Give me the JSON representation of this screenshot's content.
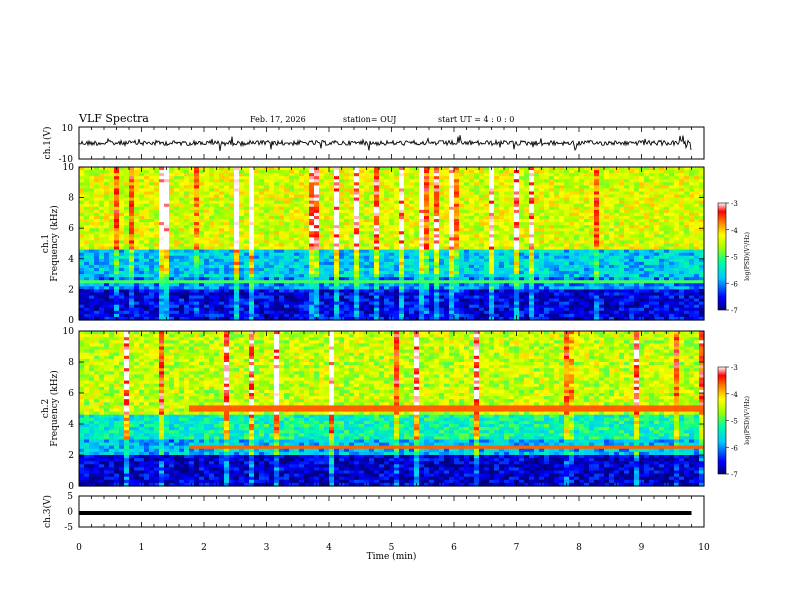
{
  "header": {
    "title": "VLF Spectra",
    "date": "Feb. 17, 2026",
    "station": "station= OUJ",
    "start": "start  UT =   4 : 0  : 0"
  },
  "chart_data": [
    {
      "type": "line",
      "name": "ch1-waveform",
      "ylabel": "ch.1(V)",
      "ylim": [
        -10,
        10
      ],
      "yticks": [
        "10",
        "-10"
      ],
      "xlim": [
        0,
        10
      ],
      "baseline": 0,
      "trace_end_min": 9.8
    },
    {
      "type": "heatmap",
      "name": "ch1-spectrogram",
      "ylabel": "ch.1\nFrequency (kHz)",
      "ylim": [
        0,
        10
      ],
      "yticks": [
        "0",
        "2",
        "4",
        "6",
        "8",
        "10"
      ],
      "xlim": [
        0,
        10
      ],
      "colorbar": {
        "label": "log(PSD)(V²/Hz)",
        "range": [
          -7,
          -3
        ],
        "ticks": [
          "-3",
          "-4",
          "-5",
          "-6",
          "-7"
        ]
      },
      "bands_khz": [
        {
          "from": 0,
          "to": 2.0,
          "level": -6.6
        },
        {
          "from": 2.0,
          "to": 2.9,
          "level": -6.0
        },
        {
          "from": 2.9,
          "to": 4.7,
          "level": -5.7
        },
        {
          "from": 4.7,
          "to": 10,
          "level": -4.4
        }
      ],
      "tweek_line_khz": 2.5
    },
    {
      "type": "heatmap",
      "name": "ch2-spectrogram",
      "ylabel": "ch.2\nFrequency (kHz)",
      "ylim": [
        0,
        10
      ],
      "yticks": [
        "0",
        "2",
        "4",
        "6",
        "8",
        "10"
      ],
      "xlim": [
        0,
        10
      ],
      "colorbar": {
        "label": "log(PSD)(V²/Hz)",
        "range": [
          -7,
          -3
        ],
        "ticks": [
          "-3",
          "-4",
          "-5",
          "-6",
          "-7"
        ]
      },
      "bands_khz": [
        {
          "from": 0,
          "to": 2.0,
          "level": -6.7
        },
        {
          "from": 2.0,
          "to": 3.0,
          "level": -5.8
        },
        {
          "from": 3.0,
          "to": 4.6,
          "level": -5.3
        },
        {
          "from": 4.6,
          "to": 10,
          "level": -4.5
        }
      ],
      "lines_khz": [
        5.0,
        2.5
      ],
      "lines_start_min": 1.75
    },
    {
      "type": "line",
      "name": "ch3-waveform",
      "ylabel": "ch.3(V)",
      "ylim": [
        -5,
        5
      ],
      "yticks": [
        "5",
        "0",
        "-5"
      ],
      "xlim": [
        0,
        10
      ],
      "xlabel": "Time (min)",
      "xticks": [
        "0",
        "1",
        "2",
        "3",
        "4",
        "5",
        "6",
        "7",
        "8",
        "9",
        "10"
      ],
      "value": -0.5,
      "trace_end_min": 9.8
    }
  ]
}
